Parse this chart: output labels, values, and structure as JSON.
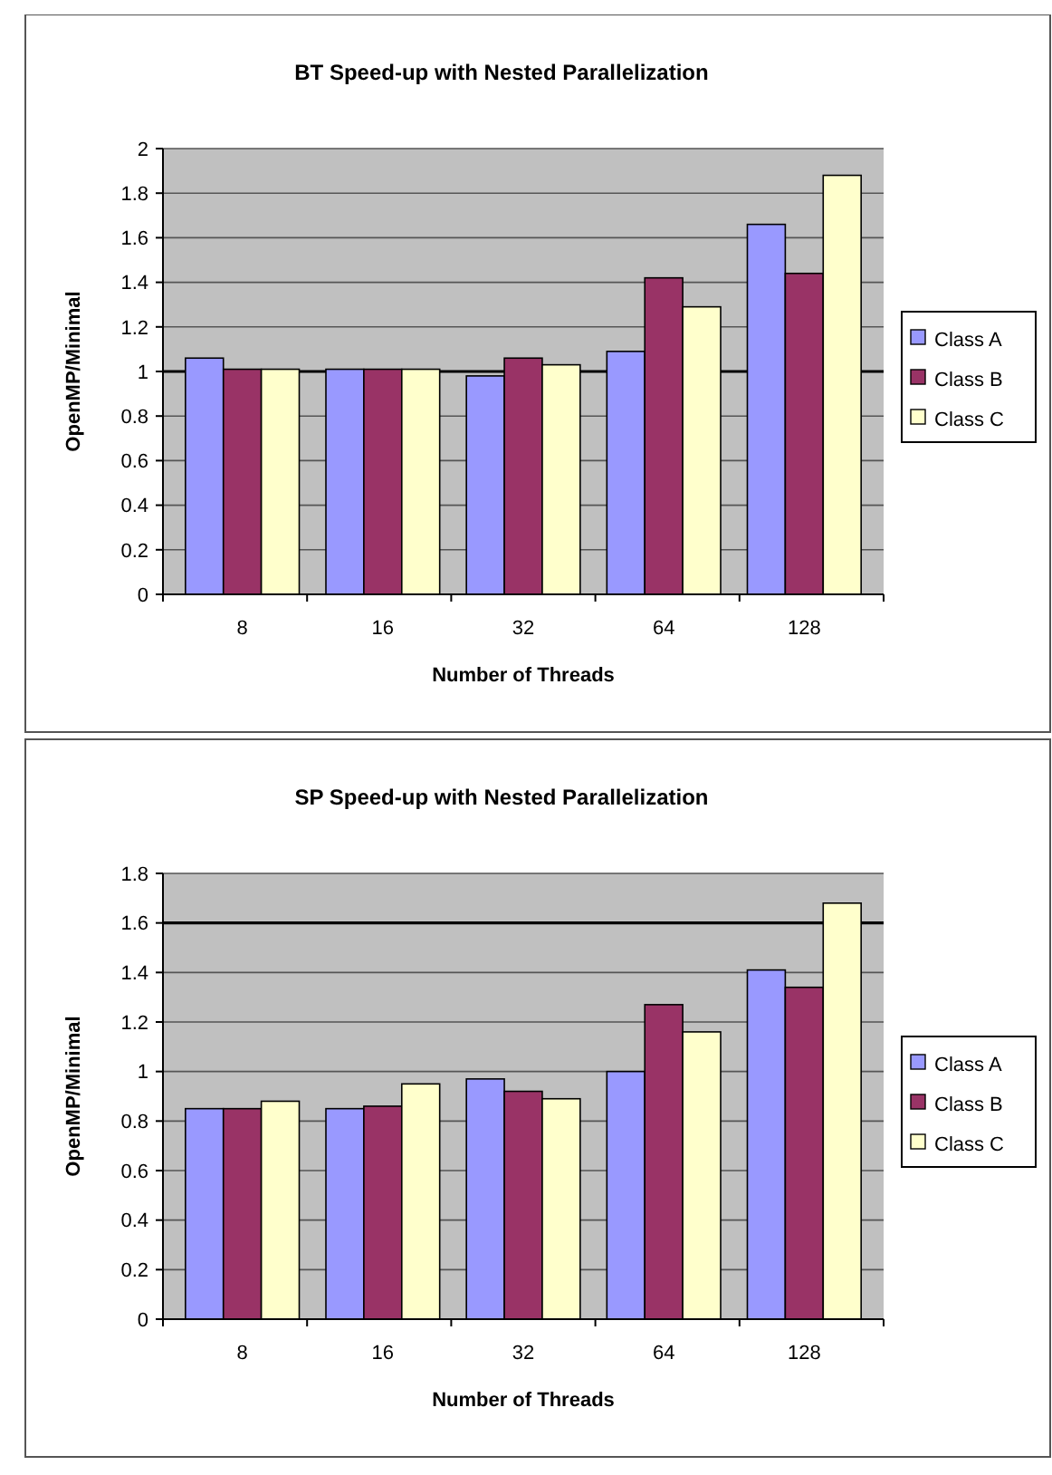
{
  "chart_data": [
    {
      "type": "bar",
      "title": "BT Speed-up with Nested Parallelization",
      "xlabel": "Number of Threads",
      "ylabel": "OpenMP/Minimal",
      "categories": [
        "8",
        "16",
        "32",
        "64",
        "128"
      ],
      "series": [
        {
          "name": "Class A",
          "color": "#9999ff",
          "values": [
            1.06,
            1.01,
            0.98,
            1.09,
            1.66
          ]
        },
        {
          "name": "Class B",
          "color": "#993366",
          "values": [
            1.01,
            1.01,
            1.06,
            1.42,
            1.44
          ]
        },
        {
          "name": "Class C",
          "color": "#ffffcc",
          "values": [
            1.01,
            1.01,
            1.03,
            1.29,
            1.88
          ]
        }
      ],
      "ylim": [
        0,
        2
      ],
      "yticks": [
        0,
        0.2,
        0.4,
        0.6,
        0.8,
        1,
        1.2,
        1.4,
        1.6,
        1.8,
        2
      ],
      "grid": "y",
      "legend": "right",
      "ref_lines": [
        {
          "axis": "y",
          "value": 1,
          "color": "#000000"
        }
      ]
    },
    {
      "type": "bar",
      "title": "SP  Speed-up with Nested Parallelization",
      "xlabel": "Number of Threads",
      "ylabel": "OpenMP/Minimal",
      "categories": [
        "8",
        "16",
        "32",
        "64",
        "128"
      ],
      "series": [
        {
          "name": "Class A",
          "color": "#9999ff",
          "values": [
            0.85,
            0.85,
            0.97,
            1.0,
            1.41
          ]
        },
        {
          "name": "Class B",
          "color": "#993366",
          "values": [
            0.85,
            0.86,
            0.92,
            1.27,
            1.34
          ]
        },
        {
          "name": "Class C",
          "color": "#ffffcc",
          "values": [
            0.88,
            0.95,
            0.89,
            1.16,
            1.68
          ]
        }
      ],
      "ylim": [
        0,
        1.8
      ],
      "yticks": [
        0,
        0.2,
        0.4,
        0.6,
        0.8,
        1,
        1.2,
        1.4,
        1.6,
        1.8
      ],
      "grid": "y",
      "legend": "right",
      "ref_lines": [
        {
          "axis": "y",
          "value": 1.6,
          "color": "#000000"
        }
      ]
    }
  ]
}
